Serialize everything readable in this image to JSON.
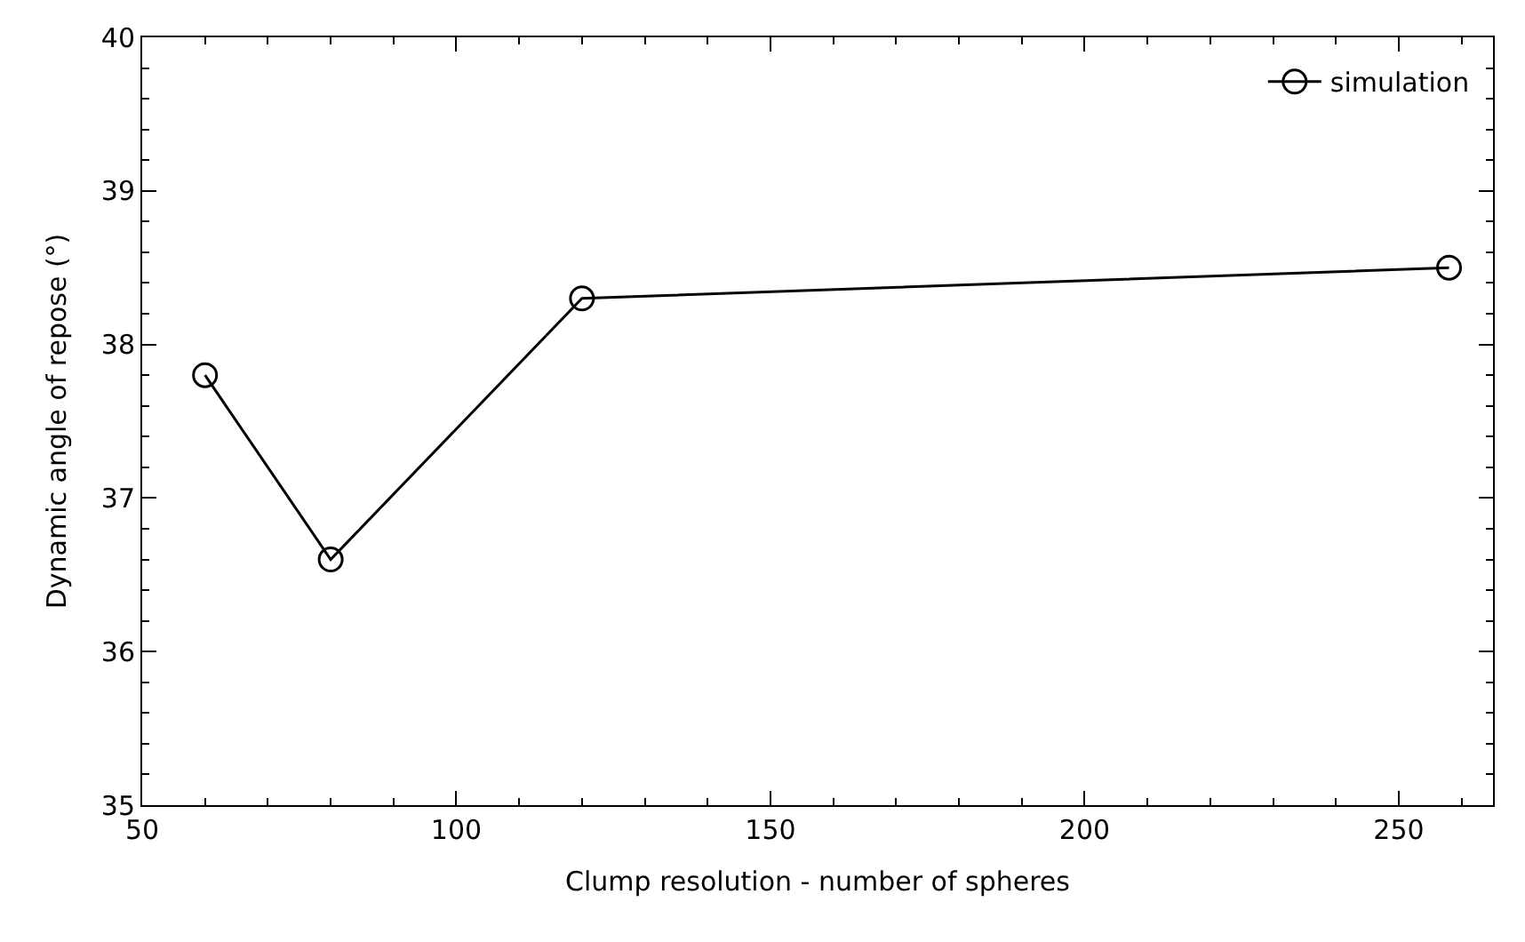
{
  "chart_data": {
    "type": "line",
    "xlabel": "Clump resolution - number of spheres",
    "ylabel": "Dynamic angle of repose (°)",
    "x": [
      60,
      80,
      120,
      258
    ],
    "series": [
      {
        "name": "simulation",
        "color": "#000000",
        "values": [
          37.8,
          36.6,
          38.3,
          38.5
        ]
      }
    ],
    "xlim": [
      50,
      265
    ],
    "xticks": [
      50,
      100,
      150,
      200,
      250
    ],
    "ylim": [
      35,
      40
    ],
    "yticks": [
      35,
      36,
      37,
      38,
      39,
      40
    ],
    "marker": "circle",
    "line_style": "solid",
    "legend": "top right"
  }
}
